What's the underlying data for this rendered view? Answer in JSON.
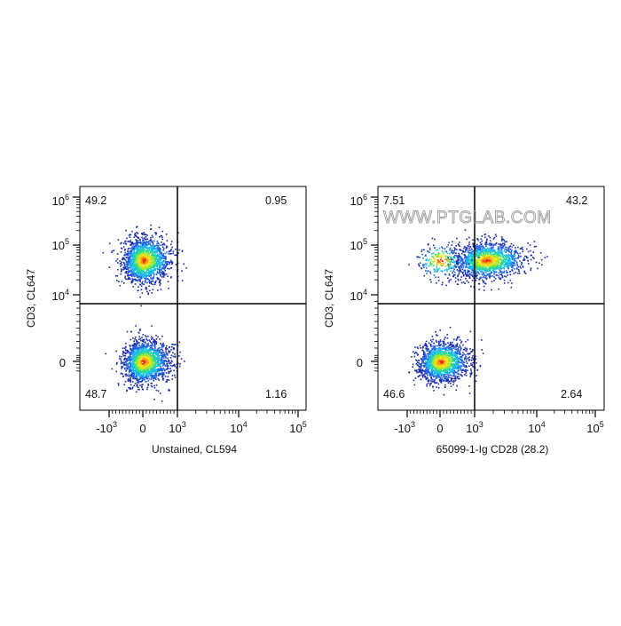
{
  "watermark": "WWW.PTGLAB.COM",
  "colormap": [
    "#1a2aa8",
    "#2060e0",
    "#18b8f0",
    "#28d89a",
    "#a0e830",
    "#f5e21e",
    "#f59a10",
    "#e8261a"
  ],
  "chart_data": [
    {
      "type": "scatter",
      "plot_type": "flow cytometry pseudocolor dot plot",
      "title": "",
      "xlabel": "Unstained, CL594",
      "ylabel": "CD3, CL647",
      "x_scale": "biexponential",
      "y_scale": "biexponential",
      "x_tick_labels": [
        "-10^3",
        "0",
        "10^3",
        "10^4",
        "10^5"
      ],
      "y_tick_labels": [
        "0",
        "10^4",
        "10^5",
        "10^6"
      ],
      "gate": {
        "x": 1000,
        "y": 7000
      },
      "quadrants": [
        {
          "name": "upper-left",
          "label": "49.2",
          "value": 49.2
        },
        {
          "name": "upper-right",
          "label": "0.95",
          "value": 0.95
        },
        {
          "name": "lower-left",
          "label": "48.7",
          "value": 48.7
        },
        {
          "name": "lower-right",
          "label": "1.16",
          "value": 1.16
        }
      ],
      "populations": [
        {
          "x_center": 0,
          "y_center": 50000,
          "fraction": 0.49
        },
        {
          "x_center": 0,
          "y_center": 0,
          "fraction": 0.49
        }
      ]
    },
    {
      "type": "scatter",
      "plot_type": "flow cytometry pseudocolor dot plot",
      "title": "",
      "xlabel": "65099-1-Ig CD28 (28.2)",
      "ylabel": "CD3, CL647",
      "x_scale": "biexponential",
      "y_scale": "biexponential",
      "x_tick_labels": [
        "-10^3",
        "0",
        "10^3",
        "10^4",
        "10^5"
      ],
      "y_tick_labels": [
        "0",
        "10^4",
        "10^5",
        "10^6"
      ],
      "gate": {
        "x": 1000,
        "y": 7000
      },
      "quadrants": [
        {
          "name": "upper-left",
          "label": "7.51",
          "value": 7.51
        },
        {
          "name": "upper-right",
          "label": "43.2",
          "value": 43.2
        },
        {
          "name": "lower-left",
          "label": "46.6",
          "value": 46.6
        },
        {
          "name": "lower-right",
          "label": "2.64",
          "value": 2.64
        }
      ],
      "populations": [
        {
          "x_center": 1500,
          "y_center": 50000,
          "fraction": 0.43
        },
        {
          "x_center": 0,
          "y_center": 50000,
          "fraction": 0.07
        },
        {
          "x_center": 0,
          "y_center": 0,
          "fraction": 0.47
        }
      ]
    }
  ]
}
